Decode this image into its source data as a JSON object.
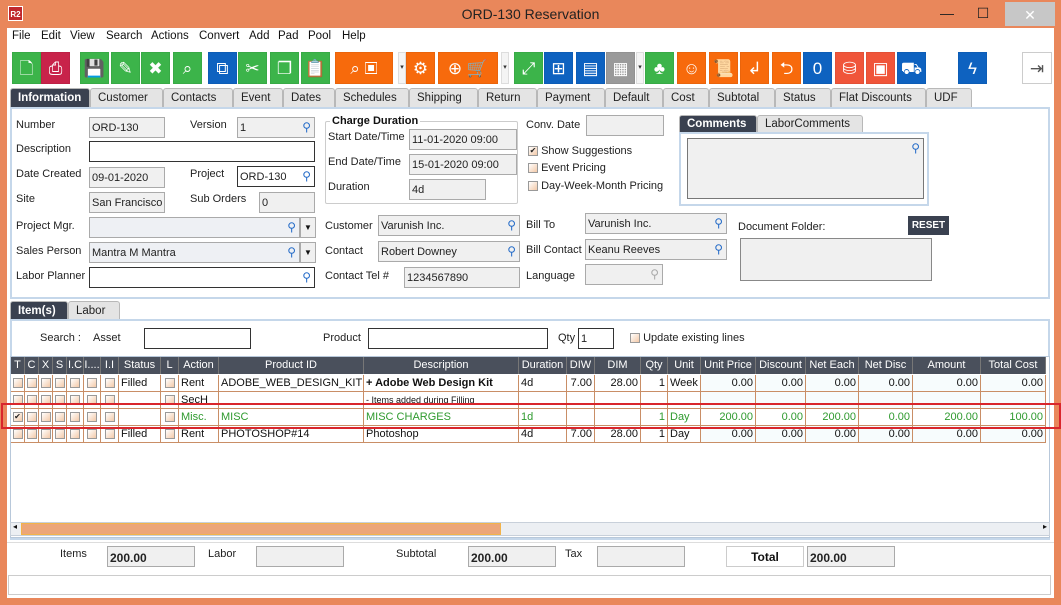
{
  "window": {
    "title": "ORD-130 Reservation",
    "app_icon": "R2",
    "minimize": "—",
    "maximize": "☐",
    "close": "✕"
  },
  "menu": [
    "File",
    "Edit",
    "View",
    "Search",
    "Actions",
    "Convert",
    "Add",
    "Pad",
    "Pool",
    "Help"
  ],
  "toolbar": [
    {
      "icon": "new-document-icon",
      "color": "#3cb44a",
      "glyph": "🗋"
    },
    {
      "icon": "print-icon",
      "color": "#c8234a",
      "glyph": "⎙"
    },
    {
      "icon": "save-icon",
      "color": "#3cb44a",
      "glyph": "💾"
    },
    {
      "icon": "edit-icon",
      "color": "#3cb44a",
      "glyph": "✎"
    },
    {
      "icon": "close-icon",
      "color": "#3cb44a",
      "glyph": "✖"
    },
    {
      "icon": "search-icon",
      "color": "#3cb44a",
      "glyph": "⌕"
    },
    {
      "icon": "copy-zero-icon",
      "color": "#0e62c0",
      "glyph": "⧉"
    },
    {
      "icon": "cut-icon",
      "color": "#3cb44a",
      "glyph": "✂"
    },
    {
      "icon": "copy-icon",
      "color": "#3cb44a",
      "glyph": "❐"
    },
    {
      "icon": "paste-icon",
      "color": "#3cb44a",
      "glyph": "📋"
    },
    {
      "icon": "search-product-icon",
      "color": "#f76a0c",
      "glyph": "⌕ ▣"
    },
    {
      "icon": "components-icon",
      "color": "#f76a0c",
      "glyph": "⚙"
    },
    {
      "icon": "add-po-cart-icon",
      "color": "#f76a0c",
      "glyph": "⊕ 🛒"
    },
    {
      "icon": "expand-icon",
      "color": "#3cb44a",
      "glyph": "⤢"
    },
    {
      "icon": "structure-icon",
      "color": "#0e62c0",
      "glyph": "⊞"
    },
    {
      "icon": "message-icon",
      "color": "#0e62c0",
      "glyph": "▤"
    },
    {
      "icon": "calendar-icon",
      "color": "#9a9a9a",
      "glyph": "▦"
    },
    {
      "icon": "hierarchy-icon",
      "color": "#3cb44a",
      "glyph": "♣"
    },
    {
      "icon": "smiley-icon",
      "color": "#f76a0c",
      "glyph": "☺"
    },
    {
      "icon": "scroll-icon",
      "color": "#f76a0c",
      "glyph": "📜"
    },
    {
      "icon": "return-icon",
      "color": "#f76a0c",
      "glyph": "↲"
    },
    {
      "icon": "box-return-icon",
      "color": "#f76a0c",
      "glyph": "⮌"
    },
    {
      "icon": "comment-count-icon",
      "color": "#0e62c0",
      "glyph": "0"
    },
    {
      "icon": "coins-add-icon",
      "color": "#f0553a",
      "glyph": "⛁"
    },
    {
      "icon": "safe-icon",
      "color": "#f0553a",
      "glyph": "▣"
    },
    {
      "icon": "delivery-truck-icon",
      "color": "#0e62c0",
      "glyph": "⛟"
    },
    {
      "icon": "lightning-icon",
      "color": "#0e62c0",
      "glyph": "ϟ"
    },
    {
      "icon": "exit-icon",
      "color": "#ffffff",
      "glyph": "⇥"
    }
  ],
  "tabs": [
    "Information",
    "Customer",
    "Contacts",
    "Event",
    "Dates",
    "Schedules",
    "Shipping",
    "Return",
    "Payment",
    "Default",
    "Cost",
    "Subtotal",
    "Status",
    "Flat Discounts",
    "UDF"
  ],
  "form": {
    "number": {
      "label": "Number",
      "value": "ORD-130"
    },
    "version": {
      "label": "Version",
      "value": "1"
    },
    "description": {
      "label": "Description",
      "value": ""
    },
    "date_created": {
      "label": "Date Created",
      "value": "09-01-2020"
    },
    "project": {
      "label": "Project",
      "value": "ORD-130"
    },
    "site": {
      "label": "Site",
      "value": "San Francisco"
    },
    "sub_orders": {
      "label": "Sub Orders",
      "value": "0"
    },
    "project_mgr": {
      "label": "Project Mgr.",
      "value": ""
    },
    "sales_person": {
      "label": "Sales Person",
      "value": "Mantra M Mantra"
    },
    "labor_planner": {
      "label": "Labor Planner",
      "value": ""
    },
    "charge_duration": {
      "title": "Charge Duration",
      "start_label": "Start Date/Time",
      "start": "11-01-2020 09:00",
      "end_label": "End Date/Time",
      "end": "15-01-2020 09:00",
      "duration_label": "Duration",
      "duration": "4d"
    },
    "customer": {
      "label": "Customer",
      "value": "Varunish Inc."
    },
    "contact": {
      "label": "Contact",
      "value": "Robert Downey"
    },
    "contact_tel": {
      "label": "Contact Tel #",
      "value": "1234567890"
    },
    "conv_date": {
      "label": "Conv. Date",
      "value": ""
    },
    "show_suggestions": {
      "label": "Show Suggestions",
      "checked": true
    },
    "event_pricing": {
      "label": "Event Pricing",
      "checked": false
    },
    "dwm_pricing": {
      "label": "Day-Week-Month Pricing",
      "checked": false
    },
    "bill_to": {
      "label": "Bill To",
      "value": "Varunish Inc."
    },
    "bill_contact": {
      "label": "Bill Contact",
      "value": "Keanu Reeves"
    },
    "language": {
      "label": "Language",
      "value": ""
    },
    "comment_tabs": [
      "Comments",
      "LaborComments"
    ],
    "document_folder": "Document Folder:",
    "reset": "RESET"
  },
  "lower_tabs": [
    "Item(s)",
    "Labor"
  ],
  "search": {
    "label": "Search :",
    "asset_label": "Asset",
    "asset": "",
    "product_label": "Product",
    "product": "",
    "qty_label": "Qty",
    "qty": "1",
    "update_label": "Update existing lines"
  },
  "grid": {
    "columns": [
      "T",
      "C",
      "X",
      "S",
      "I.C",
      "I....",
      "I.I",
      "Status",
      "L",
      "Action",
      "Product ID",
      "Description",
      "Duration",
      "DIW",
      "DIM",
      "Qty",
      "Unit",
      "Unit Price",
      "Discount",
      "Net Each",
      "Net Disc",
      "Amount",
      "Total Cost"
    ],
    "rows": [
      {
        "t": false,
        "status": "Filled",
        "action": "Rent",
        "product_id": "ADOBE_WEB_DESIGN_KIT",
        "description": "+ Adobe Web Design Kit",
        "duration": "4d",
        "diw": "7.00",
        "dim": "28.00",
        "qty": "1",
        "unit": "Week",
        "unit_price": "0.00",
        "discount": "0.00",
        "net_each": "0.00",
        "net_disc": "0.00",
        "amount": "0.00",
        "total_cost": "0.00",
        "style": "bold"
      },
      {
        "t": false,
        "status": "",
        "action": "SecH",
        "product_id": "",
        "description": "- Items added during Filling",
        "duration": "",
        "diw": "",
        "dim": "",
        "qty": "",
        "unit": "",
        "unit_price": "",
        "discount": "",
        "net_each": "",
        "net_disc": "",
        "amount": "",
        "total_cost": "",
        "style": "small"
      },
      {
        "t": true,
        "status": "",
        "action": "Misc.",
        "product_id": "MISC",
        "description": "MISC CHARGES",
        "duration": "1d",
        "diw": "",
        "dim": "",
        "qty": "1",
        "unit": "Day",
        "unit_price": "200.00",
        "discount": "0.00",
        "net_each": "200.00",
        "net_disc": "0.00",
        "amount": "200.00",
        "total_cost": "100.00",
        "style": "green"
      },
      {
        "t": false,
        "status": "Filled",
        "action": "Rent",
        "product_id": "PHOTOSHOP#14",
        "description": "Photoshop",
        "duration": "4d",
        "diw": "7.00",
        "dim": "28.00",
        "qty": "1",
        "unit": "Day",
        "unit_price": "0.00",
        "discount": "0.00",
        "net_each": "0.00",
        "net_disc": "0.00",
        "amount": "0.00",
        "total_cost": "0.00",
        "style": "normal"
      }
    ],
    "highlight_color": "#d9262c"
  },
  "totals": {
    "items_label": "Items",
    "items": "200.00",
    "labor_label": "Labor",
    "labor": "",
    "subtotal_label": "Subtotal",
    "subtotal": "200.00",
    "tax_label": "Tax",
    "tax": "",
    "total_label": "Total",
    "total": "200.00"
  },
  "colors": {
    "frame": "#e9875b",
    "green": "#3cb44a",
    "orange": "#f76a0c",
    "blue": "#0e62c0",
    "tab_active": "#3a4150"
  }
}
